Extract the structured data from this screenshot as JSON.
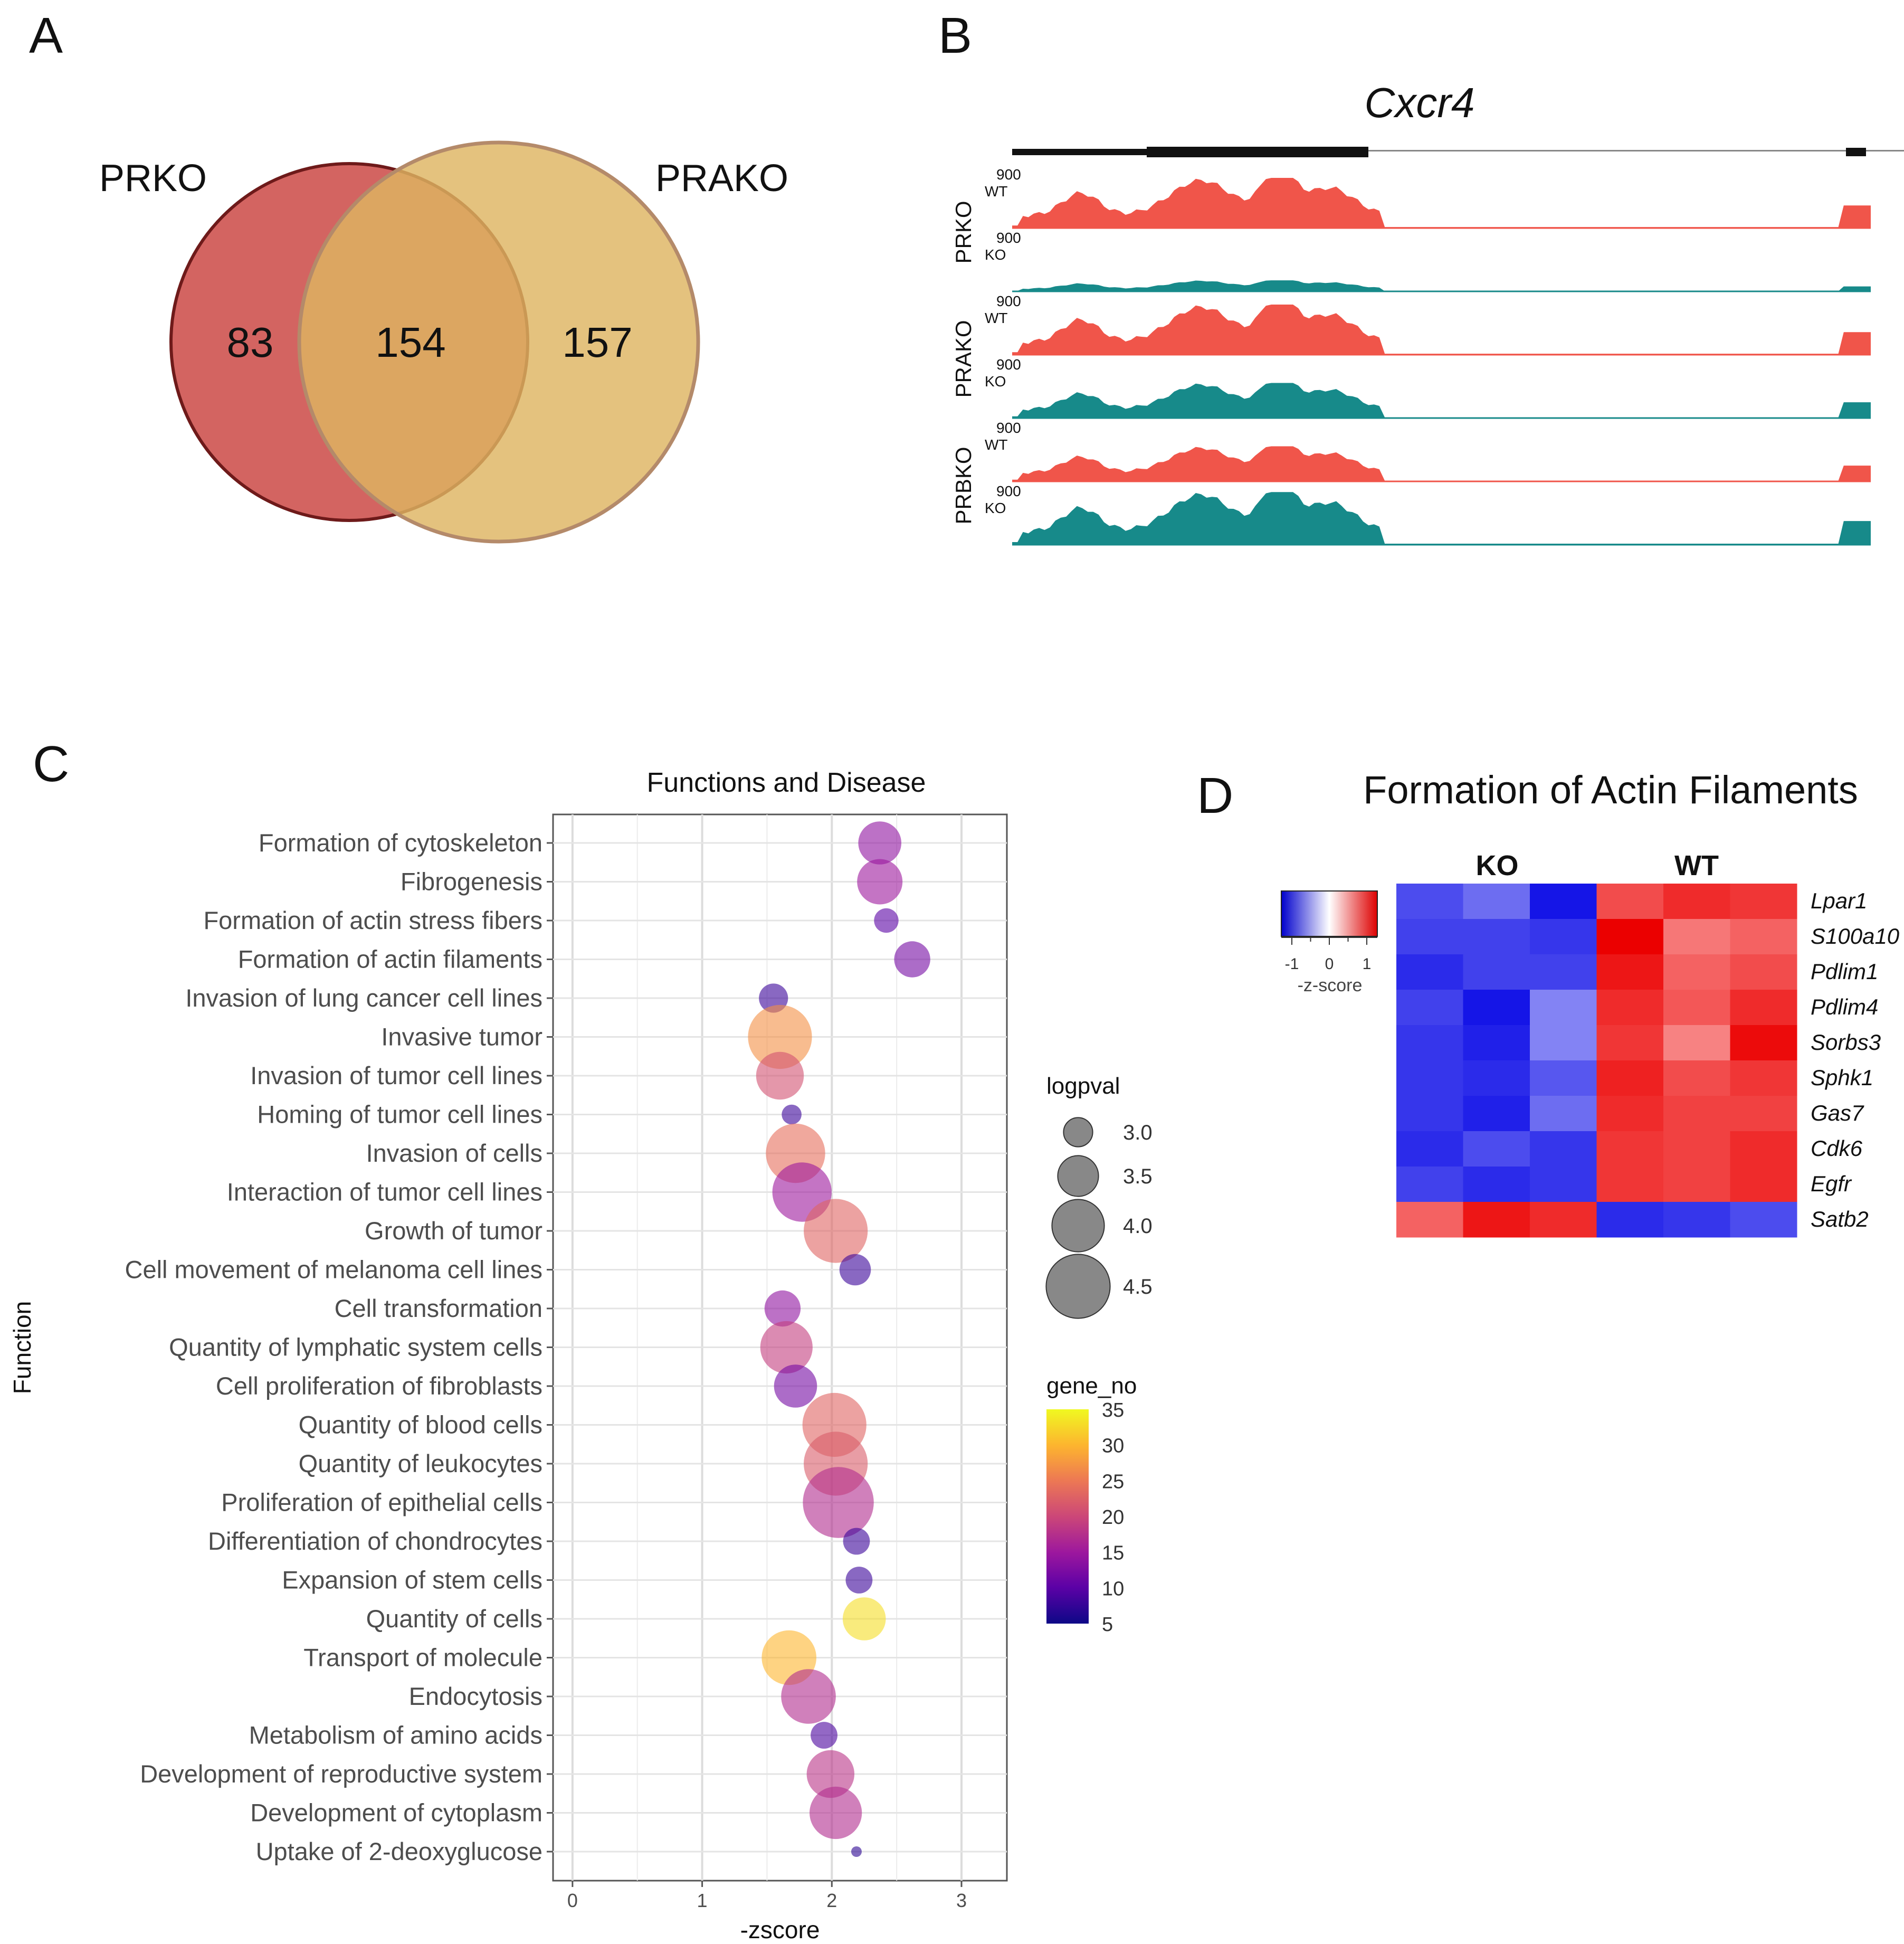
{
  "panels": {
    "a": {
      "letter": "A",
      "left_label": "PRKO",
      "right_label": "PRAKO",
      "left_only": "83",
      "overlap": "154",
      "right_only": "157"
    },
    "b": {
      "letter": "B",
      "gene": "Cxcr4",
      "scale_label": "900",
      "groups": [
        {
          "name": "PRKO",
          "tracks": [
            {
              "label": "WT",
              "amp": 1.0
            },
            {
              "label": "KO",
              "amp": 0.22
            }
          ]
        },
        {
          "name": "PRAKO",
          "tracks": [
            {
              "label": "WT",
              "amp": 1.0
            },
            {
              "label": "KO",
              "amp": 0.7
            }
          ]
        },
        {
          "name": "PRBKO",
          "tracks": [
            {
              "label": "WT",
              "amp": 0.7
            },
            {
              "label": "KO",
              "amp": 1.05
            }
          ]
        }
      ]
    },
    "c": {
      "letter": "C",
      "title": "Functions and Disease",
      "xlabel": "-zscore",
      "ylabel": "Function",
      "logpval_title": "logpval",
      "gene_title": "gene_no"
    },
    "d": {
      "letter": "D",
      "title": "Formation of Actin Filaments",
      "ko_label": "KO",
      "wt_label": "WT",
      "legend_title": "-z-score",
      "legend_ticks": [
        "-1",
        "0",
        "1"
      ]
    }
  },
  "chart_data": [
    {
      "type": "scatter",
      "title": "Functions and Disease",
      "xlabel": "-zscore",
      "ylabel": "Function",
      "xlim": [
        -0.15,
        3.35
      ],
      "xticks": [
        0,
        1,
        2,
        3
      ],
      "xtick_labels": [
        "0",
        "1",
        "2",
        "3"
      ],
      "size_legend": {
        "title": "logpval",
        "values": [
          3.0,
          3.5,
          4.0,
          4.5
        ],
        "labels": [
          "3.0",
          "3.5",
          "4.0",
          "4.5"
        ]
      },
      "color_legend": {
        "title": "gene_no",
        "min": 5,
        "max": 35,
        "ticks": [
          35,
          30,
          25,
          20,
          15,
          10,
          5
        ],
        "tick_labels": [
          "35",
          "30",
          "25",
          "20",
          "15",
          "10",
          "5"
        ]
      },
      "points": [
        {
          "label": "Formation of cytoskeleton",
          "x": 2.37,
          "logpval": 3.6,
          "gene_no": 14
        },
        {
          "label": "Fibrogenesis",
          "x": 2.37,
          "logpval": 3.7,
          "gene_no": 15
        },
        {
          "label": "Formation of actin stress fibers",
          "x": 2.42,
          "logpval": 2.8,
          "gene_no": 10
        },
        {
          "label": "Formation of actin filaments",
          "x": 2.62,
          "logpval": 3.3,
          "gene_no": 12
        },
        {
          "label": "Invasion of lung cancer cell lines",
          "x": 1.55,
          "logpval": 3.0,
          "gene_no": 8
        },
        {
          "label": "Invasive tumor",
          "x": 1.6,
          "logpval": 4.5,
          "gene_no": 27
        },
        {
          "label": "Invasion of tumor cell lines",
          "x": 1.6,
          "logpval": 3.8,
          "gene_no": 21
        },
        {
          "label": "Homing of tumor cell lines",
          "x": 1.69,
          "logpval": 2.6,
          "gene_no": 8
        },
        {
          "label": "Invasion of cells",
          "x": 1.72,
          "logpval": 4.3,
          "gene_no": 24
        },
        {
          "label": "Interaction of tumor cell lines",
          "x": 1.77,
          "logpval": 4.3,
          "gene_no": 15
        },
        {
          "label": "Growth of tumor",
          "x": 2.03,
          "logpval": 4.5,
          "gene_no": 23
        },
        {
          "label": "Cell movement of melanoma cell lines",
          "x": 2.18,
          "logpval": 3.1,
          "gene_no": 8
        },
        {
          "label": "Cell transformation",
          "x": 1.62,
          "logpval": 3.3,
          "gene_no": 14
        },
        {
          "label": "Quantity of lymphatic system cells",
          "x": 1.65,
          "logpval": 4.0,
          "gene_no": 19
        },
        {
          "label": "Cell proliferation of fibroblasts",
          "x": 1.72,
          "logpval": 3.6,
          "gene_no": 12
        },
        {
          "label": "Quantity of blood cells",
          "x": 2.02,
          "logpval": 4.5,
          "gene_no": 23
        },
        {
          "label": "Quantity of leukocytes",
          "x": 2.03,
          "logpval": 4.5,
          "gene_no": 22
        },
        {
          "label": "Proliferation of epithelial cells",
          "x": 2.05,
          "logpval": 4.8,
          "gene_no": 17
        },
        {
          "label": "Differentiation of chondrocytes",
          "x": 2.19,
          "logpval": 2.9,
          "gene_no": 8
        },
        {
          "label": "Expansion of stem cells",
          "x": 2.21,
          "logpval": 2.9,
          "gene_no": 8
        },
        {
          "label": "Quantity of cells",
          "x": 2.25,
          "logpval": 3.6,
          "gene_no": 33
        },
        {
          "label": "Transport of molecule",
          "x": 1.67,
          "logpval": 4.1,
          "gene_no": 30
        },
        {
          "label": "Endocytosis",
          "x": 1.82,
          "logpval": 4.1,
          "gene_no": 17
        },
        {
          "label": "Metabolism of amino acids",
          "x": 1.94,
          "logpval": 2.9,
          "gene_no": 9
        },
        {
          "label": "Development of reproductive system",
          "x": 1.99,
          "logpval": 3.8,
          "gene_no": 18
        },
        {
          "label": "Development of cytoplasm",
          "x": 2.03,
          "logpval": 4.0,
          "gene_no": 17
        },
        {
          "label": "Uptake of 2-deoxyglucose",
          "x": 2.19,
          "logpval": 2.2,
          "gene_no": 7
        }
      ]
    },
    {
      "type": "heatmap",
      "title": "Formation of Actin Filaments",
      "column_groups": [
        "KO",
        "WT"
      ],
      "columns_per_group": 3,
      "scale_range": [
        -1,
        1
      ],
      "rows": [
        {
          "gene": "Lpar1",
          "values": [
            -0.7,
            -0.55,
            -0.95,
            0.65,
            0.8,
            0.75
          ]
        },
        {
          "gene": "S100a10",
          "values": [
            -0.75,
            -0.75,
            -0.8,
            1.0,
            0.45,
            0.55
          ]
        },
        {
          "gene": "Pdlim1",
          "values": [
            -0.85,
            -0.75,
            -0.75,
            0.9,
            0.55,
            0.65
          ]
        },
        {
          "gene": "Pdlim4",
          "values": [
            -0.75,
            -0.95,
            -0.45,
            0.8,
            0.6,
            0.8
          ]
        },
        {
          "gene": "Sorbs3",
          "values": [
            -0.8,
            -0.9,
            -0.45,
            0.75,
            0.4,
            0.95
          ]
        },
        {
          "gene": "Sphk1",
          "values": [
            -0.8,
            -0.85,
            -0.65,
            0.85,
            0.65,
            0.75
          ]
        },
        {
          "gene": "Gas7",
          "values": [
            -0.8,
            -0.9,
            -0.55,
            0.8,
            0.7,
            0.7
          ]
        },
        {
          "gene": "Cdk6",
          "values": [
            -0.85,
            -0.7,
            -0.8,
            0.75,
            0.7,
            0.8
          ]
        },
        {
          "gene": "Egfr",
          "values": [
            -0.75,
            -0.85,
            -0.8,
            0.75,
            0.7,
            0.8
          ]
        },
        {
          "gene": "Satb2",
          "values": [
            0.55,
            0.9,
            0.8,
            -0.85,
            -0.8,
            -0.7
          ]
        }
      ]
    }
  ]
}
